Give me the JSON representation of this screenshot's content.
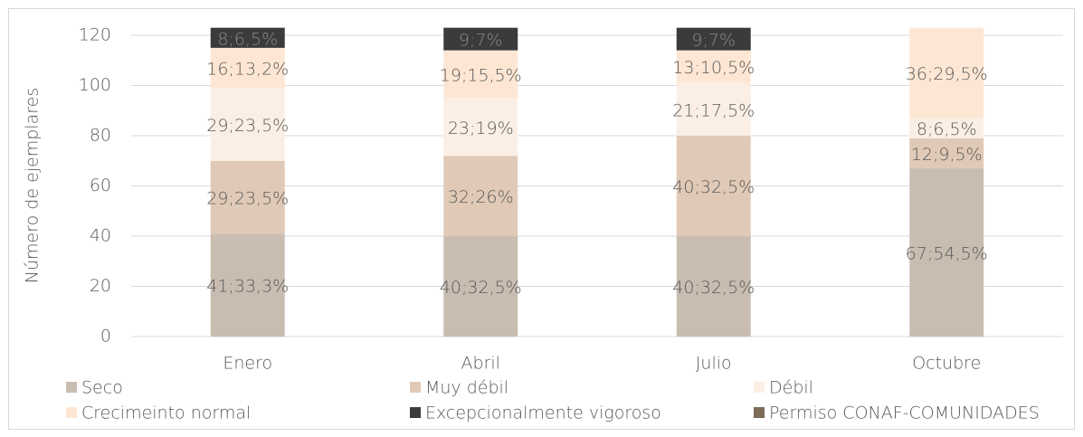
{
  "chart_data": {
    "type": "stacked-bar",
    "y_label": "Número de ejemplares",
    "categories": [
      "Enero",
      "Abril",
      "Julio",
      "Octubre"
    ],
    "ylim": [
      0,
      120
    ],
    "yticks": [
      0,
      20,
      40,
      60,
      80,
      100,
      120
    ],
    "grid": true,
    "series": [
      {
        "name": "Seco",
        "color": "#c9bdb1",
        "values": [
          41,
          40,
          40,
          67
        ],
        "value_labels": [
          "41;33,3%",
          "40;32,5%",
          "40;32,5%",
          "67;54,5%"
        ]
      },
      {
        "name": "Muy débil",
        "color": "#e0cab7",
        "values": [
          29,
          32,
          40,
          12
        ],
        "value_labels": [
          "29;23,5%",
          "32;26%",
          "40;32,5%",
          "12;9,5%"
        ]
      },
      {
        "name": "Débil",
        "color": "#fbefe5",
        "values": [
          29,
          23,
          21,
          8
        ],
        "value_labels": [
          "29;23,5%",
          "23;19%",
          "21;17,5%",
          "8;6,5%"
        ]
      },
      {
        "name": "Crecimeinto normal",
        "color": "#fde7d4",
        "values": [
          16,
          19,
          13,
          36
        ],
        "value_labels": [
          "16;13,2%",
          "19;15,5%",
          "13;10,5%",
          "36;29,5%"
        ]
      },
      {
        "name": "Excepcionalmente vigoroso",
        "color": "#3b3b3b",
        "values": [
          8,
          9,
          9,
          null
        ],
        "value_labels": [
          "8;6,5%",
          "9;7%",
          "9;7%",
          null
        ]
      },
      {
        "name": "Permiso CONAF-COMUNIDADES",
        "color": "#7b6b57",
        "values": [
          null,
          null,
          null,
          null
        ],
        "value_labels": [
          null,
          null,
          null,
          null
        ]
      }
    ],
    "legend": "bottom"
  }
}
